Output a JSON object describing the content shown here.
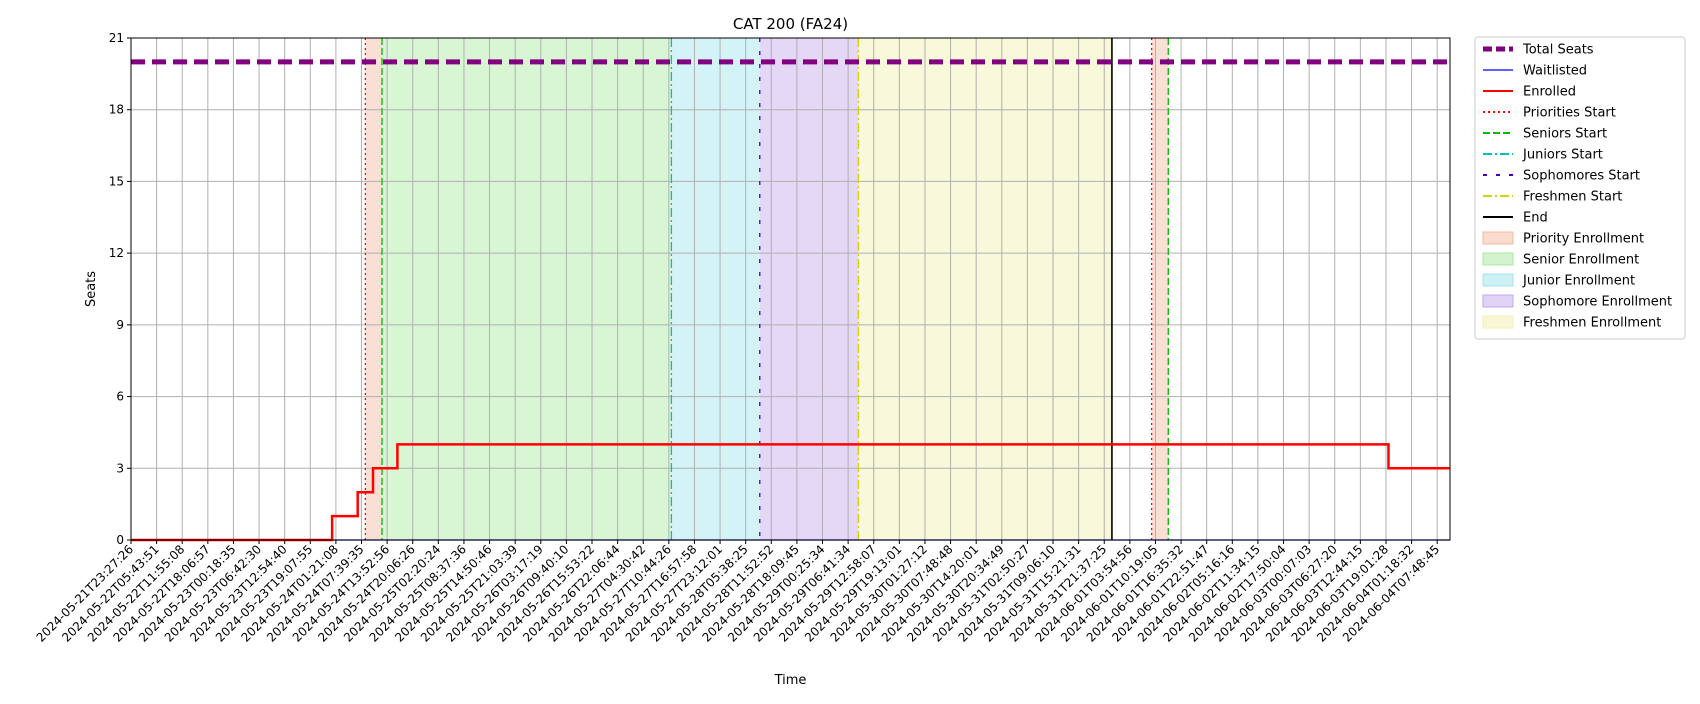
{
  "chart_data": {
    "type": "line",
    "title": "CAT 200 (FA24)",
    "xlabel": "Time",
    "ylabel": "Seats",
    "ylim": [
      0,
      21
    ],
    "yticks": [
      0,
      3,
      6,
      9,
      12,
      15,
      18,
      21
    ],
    "grid": true,
    "legend_position": "outside-right",
    "x_tick_labels": [
      "2024-05-21T23:27:26",
      "2024-05-22T05:43:51",
      "2024-05-22T11:55:08",
      "2024-05-22T18:06:57",
      "2024-05-23T00:18:35",
      "2024-05-23T06:42:30",
      "2024-05-23T12:54:40",
      "2024-05-23T19:07:55",
      "2024-05-24T01:21:08",
      "2024-05-24T07:39:35",
      "2024-05-24T13:52:56",
      "2024-05-24T20:06:26",
      "2024-05-25T02:20:24",
      "2024-05-25T08:37:36",
      "2024-05-25T14:50:46",
      "2024-05-25T21:03:39",
      "2024-05-26T03:17:19",
      "2024-05-26T09:40:10",
      "2024-05-26T15:53:22",
      "2024-05-26T22:06:44",
      "2024-05-27T04:30:42",
      "2024-05-27T10:44:26",
      "2024-05-27T16:57:58",
      "2024-05-27T23:12:01",
      "2024-05-28T05:38:25",
      "2024-05-28T11:52:52",
      "2024-05-28T18:09:45",
      "2024-05-29T00:25:34",
      "2024-05-29T06:41:34",
      "2024-05-29T12:58:07",
      "2024-05-29T19:13:01",
      "2024-05-30T01:27:12",
      "2024-05-30T07:48:48",
      "2024-05-30T14:20:01",
      "2024-05-30T20:34:49",
      "2024-05-31T02:50:27",
      "2024-05-31T09:06:10",
      "2024-05-31T15:21:31",
      "2024-05-31T21:37:25",
      "2024-06-01T03:54:56",
      "2024-06-01T10:19:05",
      "2024-06-01T16:35:32",
      "2024-06-01T22:51:47",
      "2024-06-02T05:16:16",
      "2024-06-02T11:34:15",
      "2024-06-02T17:50:04",
      "2024-06-03T00:07:03",
      "2024-06-03T06:27:20",
      "2024-06-03T12:44:15",
      "2024-06-03T19:01:28",
      "2024-06-04T01:18:32",
      "2024-06-04T07:48:45"
    ],
    "x_range_index": [
      0,
      51.5
    ],
    "series": [
      {
        "name": "Total Seats",
        "kind": "line",
        "color": "#800080",
        "dash": "dashed-thick",
        "points": [
          [
            0,
            20
          ],
          [
            51.5,
            20
          ]
        ]
      },
      {
        "name": "Waitlisted",
        "kind": "line",
        "color": "#0000ff",
        "points": [
          [
            0,
            0
          ],
          [
            51.5,
            0
          ]
        ]
      },
      {
        "name": "Enrolled",
        "kind": "step",
        "color": "#ff0000",
        "points": [
          [
            0,
            0
          ],
          [
            7.85,
            0
          ],
          [
            7.85,
            1
          ],
          [
            8.85,
            1
          ],
          [
            8.85,
            2
          ],
          [
            9.45,
            2
          ],
          [
            9.45,
            3
          ],
          [
            10.4,
            3
          ],
          [
            10.4,
            4
          ],
          [
            49.1,
            4
          ],
          [
            49.1,
            3
          ],
          [
            51.5,
            3
          ]
        ]
      }
    ],
    "events": [
      {
        "name": "Priorities Start",
        "x_index": 9.15,
        "color": "#ff0000",
        "style": "dotted"
      },
      {
        "name": "Seniors Start",
        "x_index": 9.8,
        "color": "#00bb00",
        "style": "dashed"
      },
      {
        "name": "Juniors Start",
        "x_index": 21.1,
        "color": "#00bfbf",
        "style": "dashdot"
      },
      {
        "name": "Sophomores Start",
        "x_index": 24.55,
        "color": "#4000cc",
        "style": "loosedash"
      },
      {
        "name": "Freshmen Start",
        "x_index": 28.4,
        "color": "#d4d400",
        "style": "dashdot"
      },
      {
        "name": "End",
        "x_index": 38.3,
        "color": "#000000",
        "style": "solid"
      },
      {
        "name": "Priorities Start 2",
        "x_index": 39.85,
        "color": "#ff0000",
        "style": "dotted"
      },
      {
        "name": "Seniors Start 2",
        "x_index": 40.5,
        "color": "#00bb00",
        "style": "dashed"
      }
    ],
    "shaded_regions": [
      {
        "name": "Priority Enrollment",
        "from": 9.15,
        "to": 9.8,
        "color": "#f5b9a0"
      },
      {
        "name": "Senior Enrollment",
        "from": 9.8,
        "to": 21.1,
        "color": "#a8e8a0"
      },
      {
        "name": "Junior Enrollment",
        "from": 21.1,
        "to": 24.55,
        "color": "#a0e4ec"
      },
      {
        "name": "Sophomore Enrollment",
        "from": 24.55,
        "to": 28.4,
        "color": "#c4a8ec"
      },
      {
        "name": "Freshmen Enrollment",
        "from": 28.4,
        "to": 38.3,
        "color": "#f0f0b0"
      },
      {
        "name": "Priority Enrollment 2",
        "from": 39.85,
        "to": 40.5,
        "color": "#f5b9a0"
      }
    ],
    "legend": [
      {
        "label": "Total Seats",
        "kind": "line",
        "color": "#800080",
        "style": "thick-dashed"
      },
      {
        "label": "Waitlisted",
        "kind": "line",
        "color": "#0000ff",
        "style": "solid-thin"
      },
      {
        "label": "Enrolled",
        "kind": "line",
        "color": "#ff0000",
        "style": "solid"
      },
      {
        "label": "Priorities Start",
        "kind": "line",
        "color": "#ff0000",
        "style": "dotted"
      },
      {
        "label": "Seniors Start",
        "kind": "line",
        "color": "#00bb00",
        "style": "dashed"
      },
      {
        "label": "Juniors Start",
        "kind": "line",
        "color": "#00bfbf",
        "style": "dashdot"
      },
      {
        "label": "Sophomores Start",
        "kind": "line",
        "color": "#4000cc",
        "style": "loosedash"
      },
      {
        "label": "Freshmen Start",
        "kind": "line",
        "color": "#d4d400",
        "style": "dashdot"
      },
      {
        "label": "End",
        "kind": "line",
        "color": "#000000",
        "style": "solid"
      },
      {
        "label": "Priority Enrollment",
        "kind": "patch",
        "color": "#f5b9a0"
      },
      {
        "label": "Senior Enrollment",
        "kind": "patch",
        "color": "#a8e8a0"
      },
      {
        "label": "Junior Enrollment",
        "kind": "patch",
        "color": "#a0e4ec"
      },
      {
        "label": "Sophomore Enrollment",
        "kind": "patch",
        "color": "#c4a8ec"
      },
      {
        "label": "Freshmen Enrollment",
        "kind": "patch",
        "color": "#f0f0b0"
      }
    ]
  }
}
